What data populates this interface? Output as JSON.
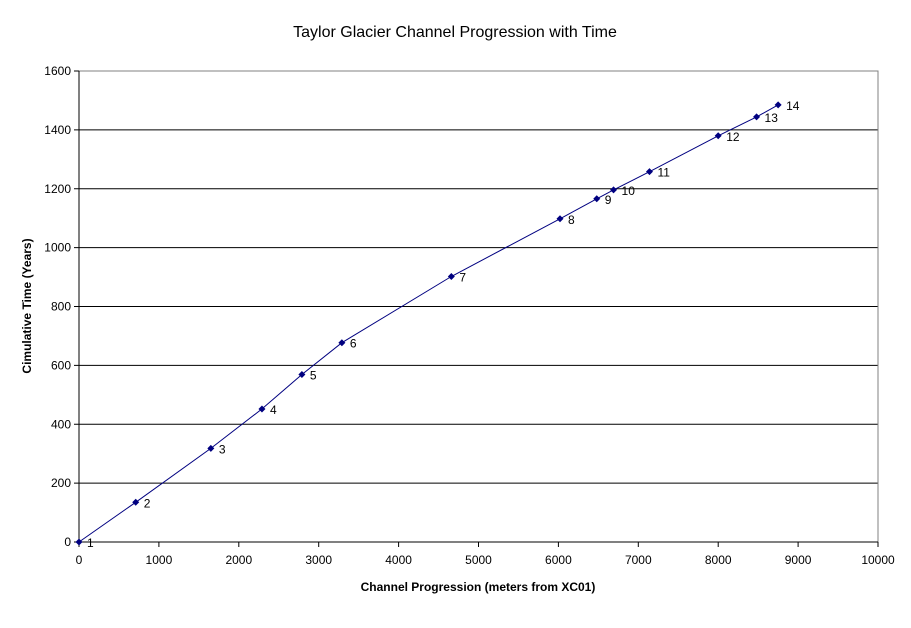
{
  "chart_data": {
    "type": "scatter",
    "title": "Taylor Glacier Channel Progression with Time",
    "xlabel": "Channel Progression (meters from XC01)",
    "ylabel": "Cimulative Time (Years)",
    "xlim": [
      0,
      10000
    ],
    "ylim": [
      0,
      1600
    ],
    "xticks": [
      0,
      1000,
      2000,
      3000,
      4000,
      5000,
      6000,
      7000,
      8000,
      9000,
      10000
    ],
    "yticks": [
      0,
      200,
      400,
      600,
      800,
      1000,
      1200,
      1400,
      1600
    ],
    "grid": "horizontal",
    "legend": "none",
    "line_color": "#000080",
    "marker": "diamond",
    "series": [
      {
        "points": [
          {
            "x": 0,
            "y": 0,
            "label": "1"
          },
          {
            "x": 710,
            "y": 135,
            "label": "2"
          },
          {
            "x": 1650,
            "y": 318,
            "label": "3"
          },
          {
            "x": 2290,
            "y": 452,
            "label": "4"
          },
          {
            "x": 2790,
            "y": 569,
            "label": "5"
          },
          {
            "x": 3290,
            "y": 677,
            "label": "6"
          },
          {
            "x": 4660,
            "y": 902,
            "label": "7"
          },
          {
            "x": 6020,
            "y": 1098,
            "label": "8"
          },
          {
            "x": 6480,
            "y": 1166,
            "label": "9"
          },
          {
            "x": 6690,
            "y": 1196,
            "label": "10"
          },
          {
            "x": 7140,
            "y": 1258,
            "label": "11"
          },
          {
            "x": 8000,
            "y": 1380,
            "label": "12"
          },
          {
            "x": 8480,
            "y": 1444,
            "label": "13"
          },
          {
            "x": 8750,
            "y": 1485,
            "label": "14"
          }
        ]
      }
    ]
  }
}
